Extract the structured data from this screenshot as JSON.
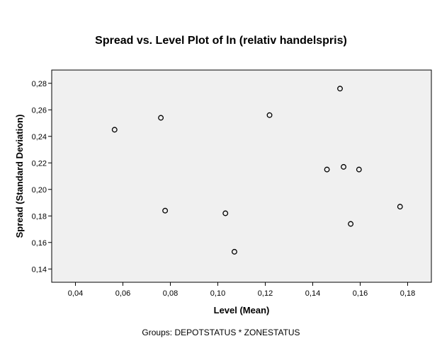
{
  "chart_data": {
    "type": "scatter",
    "title": "Spread vs. Level Plot of ln (relativ handelspris)",
    "xlabel": "Level (Mean)",
    "ylabel": "Spread (Standard Deviation)",
    "footnote": "Groups: DEPOTSTATUS * ZONESTATUS",
    "xlim": [
      0.03,
      0.19
    ],
    "ylim": [
      0.13,
      0.29
    ],
    "xticks": [
      0.04,
      0.06,
      0.08,
      0.1,
      0.12,
      0.14,
      0.16,
      0.18
    ],
    "xtick_labels": [
      "0,04",
      "0,06",
      "0,08",
      "0,10",
      "0,12",
      "0,14",
      "0,16",
      "0,18"
    ],
    "yticks": [
      0.14,
      0.16,
      0.18,
      0.2,
      0.22,
      0.24,
      0.26,
      0.28
    ],
    "ytick_labels": [
      "0,14",
      "0,16",
      "0,18",
      "0,20",
      "0,22",
      "0,24",
      "0,26",
      "0,28"
    ],
    "grid": false,
    "points": [
      {
        "x": 0.0565,
        "y": 0.245
      },
      {
        "x": 0.076,
        "y": 0.254
      },
      {
        "x": 0.0778,
        "y": 0.184
      },
      {
        "x": 0.1032,
        "y": 0.182
      },
      {
        "x": 0.107,
        "y": 0.153
      },
      {
        "x": 0.1218,
        "y": 0.256
      },
      {
        "x": 0.146,
        "y": 0.215
      },
      {
        "x": 0.1515,
        "y": 0.276
      },
      {
        "x": 0.153,
        "y": 0.217
      },
      {
        "x": 0.156,
        "y": 0.174
      },
      {
        "x": 0.1595,
        "y": 0.215
      },
      {
        "x": 0.1768,
        "y": 0.187
      }
    ],
    "colors": {
      "plot_background": "#f0f0f0",
      "marker_stroke": "#000000",
      "frame": "#000000"
    }
  }
}
